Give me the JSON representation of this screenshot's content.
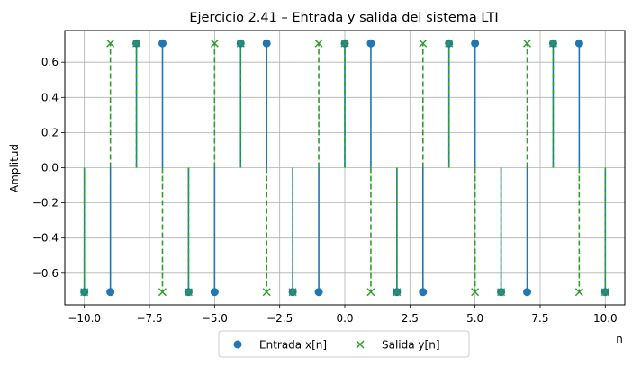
{
  "chart_data": {
    "type": "stem",
    "title": "Ejercicio 2.41 – Entrada y salida del sistema LTI",
    "xlabel": "n",
    "ylabel": "Amplitud",
    "xlim": [
      -10.75,
      10.75
    ],
    "ylim": [
      -0.78,
      0.78
    ],
    "xticks": [
      -10,
      -7.5,
      -5,
      -2.5,
      0,
      2.5,
      5,
      7.5,
      10
    ],
    "xtick_labels": [
      "−10.0",
      "−7.5",
      "−5.0",
      "−2.5",
      "0.0",
      "2.5",
      "5.0",
      "7.5",
      "10.0"
    ],
    "yticks": [
      -0.6,
      -0.4,
      -0.2,
      0,
      0.2,
      0.4,
      0.6
    ],
    "ytick_labels": [
      "−0.6",
      "−0.4",
      "−0.2",
      "0.0",
      "0.2",
      "0.4",
      "0.6"
    ],
    "grid": true,
    "legend_position": "bottom-center",
    "x": [
      -10,
      -9,
      -8,
      -7,
      -6,
      -5,
      -4,
      -3,
      -2,
      -1,
      0,
      1,
      2,
      3,
      4,
      5,
      6,
      7,
      8,
      9,
      10
    ],
    "series": [
      {
        "name": "Entrada x[n]",
        "color": "#1f77b4",
        "marker": "circle",
        "line_style": "solid",
        "values": [
          -0.7071,
          -0.7071,
          0.7071,
          0.7071,
          -0.7071,
          -0.7071,
          0.7071,
          0.7071,
          -0.7071,
          -0.7071,
          0.7071,
          0.7071,
          -0.7071,
          -0.7071,
          0.7071,
          0.7071,
          -0.7071,
          -0.7071,
          0.7071,
          0.7071,
          -0.7071
        ]
      },
      {
        "name": "Salida y[n]",
        "color": "#2ca02c",
        "marker": "x",
        "line_style": "dashed",
        "values": [
          -0.7071,
          0.7071,
          0.7071,
          -0.7071,
          -0.7071,
          0.7071,
          0.7071,
          -0.7071,
          -0.7071,
          0.7071,
          0.7071,
          -0.7071,
          -0.7071,
          0.7071,
          0.7071,
          -0.7071,
          -0.7071,
          0.7071,
          0.7071,
          -0.7071,
          -0.7071
        ]
      }
    ]
  }
}
